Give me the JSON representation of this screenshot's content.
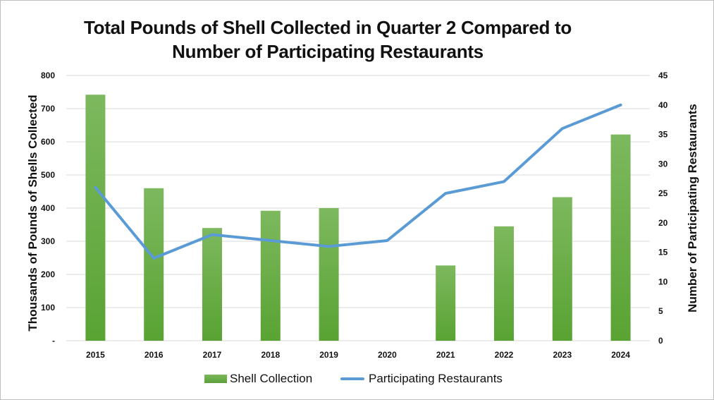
{
  "chart_data": {
    "type": "bar",
    "title_line1": "Total Pounds of Shell Collected in Quarter 2 Compared to",
    "title_line2": "Number of Participating Restaurants",
    "categories": [
      "2015",
      "2016",
      "2017",
      "2018",
      "2019",
      "2020",
      "2021",
      "2022",
      "2023",
      "2024"
    ],
    "series": [
      {
        "name": "Shell Collection",
        "type": "bar",
        "axis": "left",
        "values": [
          742,
          460,
          340,
          392,
          400,
          0,
          227,
          345,
          433,
          622
        ],
        "color": "#6fb04f"
      },
      {
        "name": "Participating Restaurants",
        "type": "line",
        "axis": "right",
        "values": [
          26,
          14,
          18,
          17,
          16,
          17,
          25,
          27,
          36,
          40
        ],
        "color": "#5b9bd5"
      }
    ],
    "ylabel": "Thousands of Pounds of Shells Collected",
    "y2label": "Number of Participating Restaurants",
    "ylim": [
      0,
      800
    ],
    "y2lim": [
      0,
      45
    ],
    "yticks": [
      "-",
      "100",
      "200",
      "300",
      "400",
      "500",
      "600",
      "700",
      "800"
    ],
    "y2ticks": [
      "0",
      "5",
      "10",
      "15",
      "20",
      "25",
      "30",
      "35",
      "40",
      "45"
    ],
    "grid": true,
    "legend_position": "bottom"
  }
}
